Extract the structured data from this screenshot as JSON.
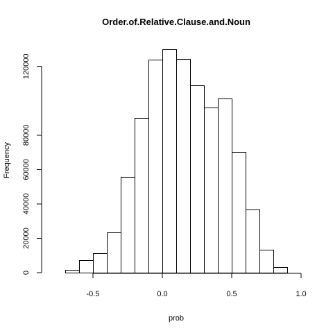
{
  "chart_data": {
    "type": "bar",
    "title": "Order.of.Relative.Clause.and.Noun",
    "xlabel": "prob",
    "ylabel": "Frequency",
    "bin_edges": [
      -0.7,
      -0.6,
      -0.5,
      -0.4,
      -0.3,
      -0.2,
      -0.1,
      0.0,
      0.1,
      0.2,
      0.3,
      0.4,
      0.5,
      0.6,
      0.7,
      0.8,
      0.9
    ],
    "values": [
      1500,
      7200,
      11300,
      23400,
      55800,
      90000,
      124000,
      130000,
      124500,
      109000,
      96000,
      101500,
      70300,
      36800,
      13300,
      3300
    ],
    "xlim": [
      -0.8,
      1.0
    ],
    "ylim": [
      0,
      132000
    ],
    "x_ticks": [
      -0.5,
      0.0,
      0.5,
      1.0
    ],
    "x_tick_labels": [
      "-0.5",
      "0.0",
      "0.5",
      "1.0"
    ],
    "y_ticks": [
      0,
      20000,
      40000,
      60000,
      80000,
      120000
    ],
    "y_tick_labels": [
      "0",
      "20000",
      "40000",
      "60000",
      "80000",
      "120000"
    ],
    "grid": false
  }
}
